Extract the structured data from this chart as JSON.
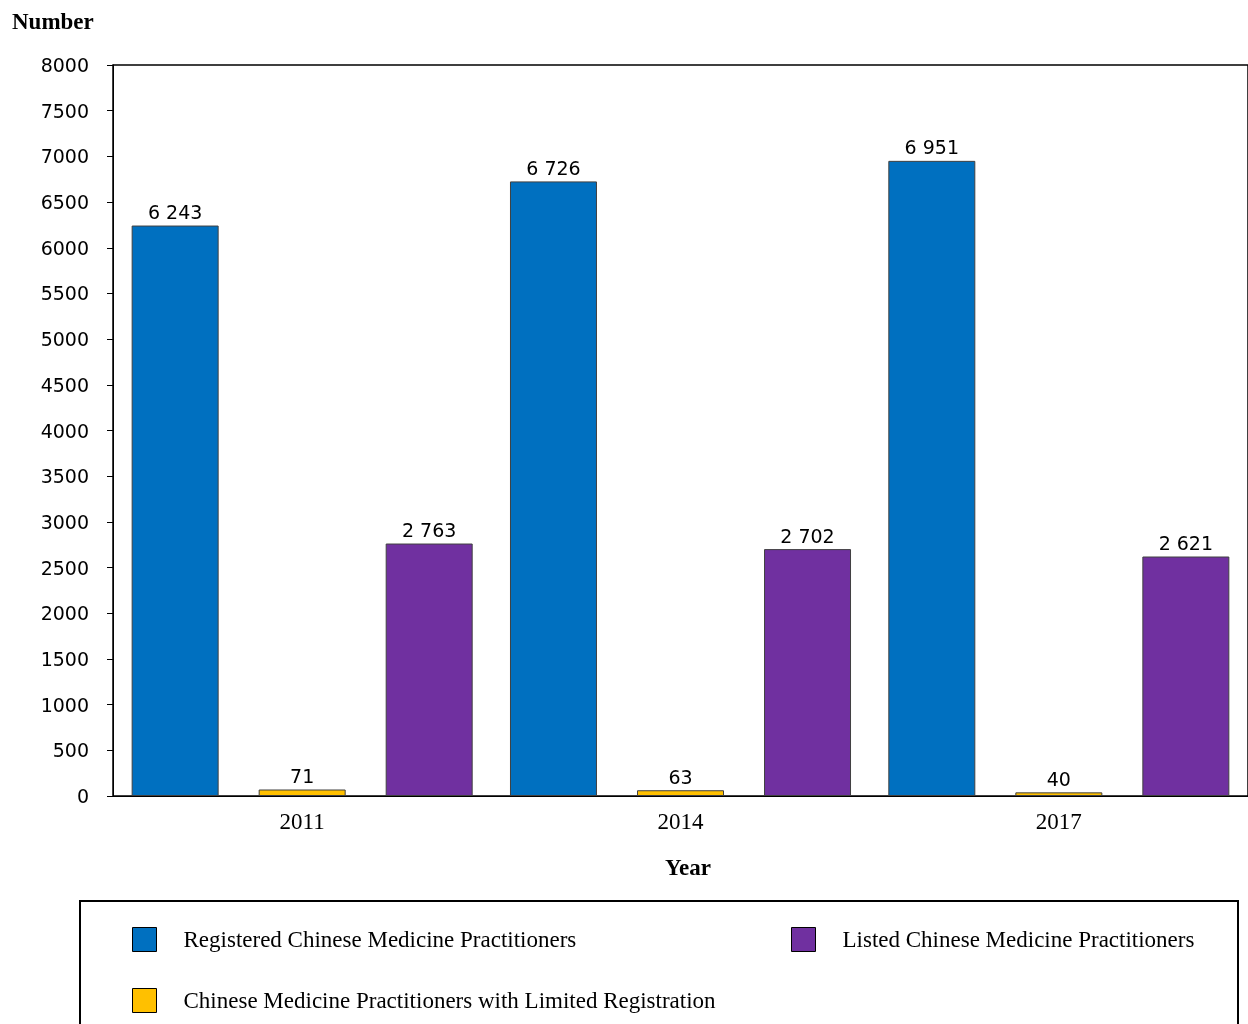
{
  "chart_data": {
    "type": "bar",
    "ylabel": "Number",
    "xlabel": "Year",
    "categories": [
      "2011",
      "2014",
      "2017"
    ],
    "series": [
      {
        "name": "Registered Chinese Medicine Practitioners",
        "color": "#0070c0",
        "values": [
          6243,
          6726,
          6951
        ],
        "value_labels": [
          "6 243",
          "6 726",
          "6 951"
        ]
      },
      {
        "name": "Chinese Medicine Practitioners with Limited Registration",
        "color": "#ffc000",
        "values": [
          71,
          63,
          40
        ],
        "value_labels": [
          "71",
          "63",
          "40"
        ]
      },
      {
        "name": "Listed Chinese Medicine Practitioners",
        "color": "#7030a0",
        "values": [
          2763,
          2702,
          2621
        ],
        "value_labels": [
          "2 763",
          "2 702",
          "2 621"
        ]
      }
    ],
    "ylim": [
      0,
      8000
    ],
    "yticks": [
      0,
      500,
      1000,
      1500,
      2000,
      2500,
      3000,
      3500,
      4000,
      4500,
      5000,
      5500,
      6000,
      6500,
      7000,
      7500,
      8000
    ],
    "grid": false,
    "legend": "bottom"
  }
}
